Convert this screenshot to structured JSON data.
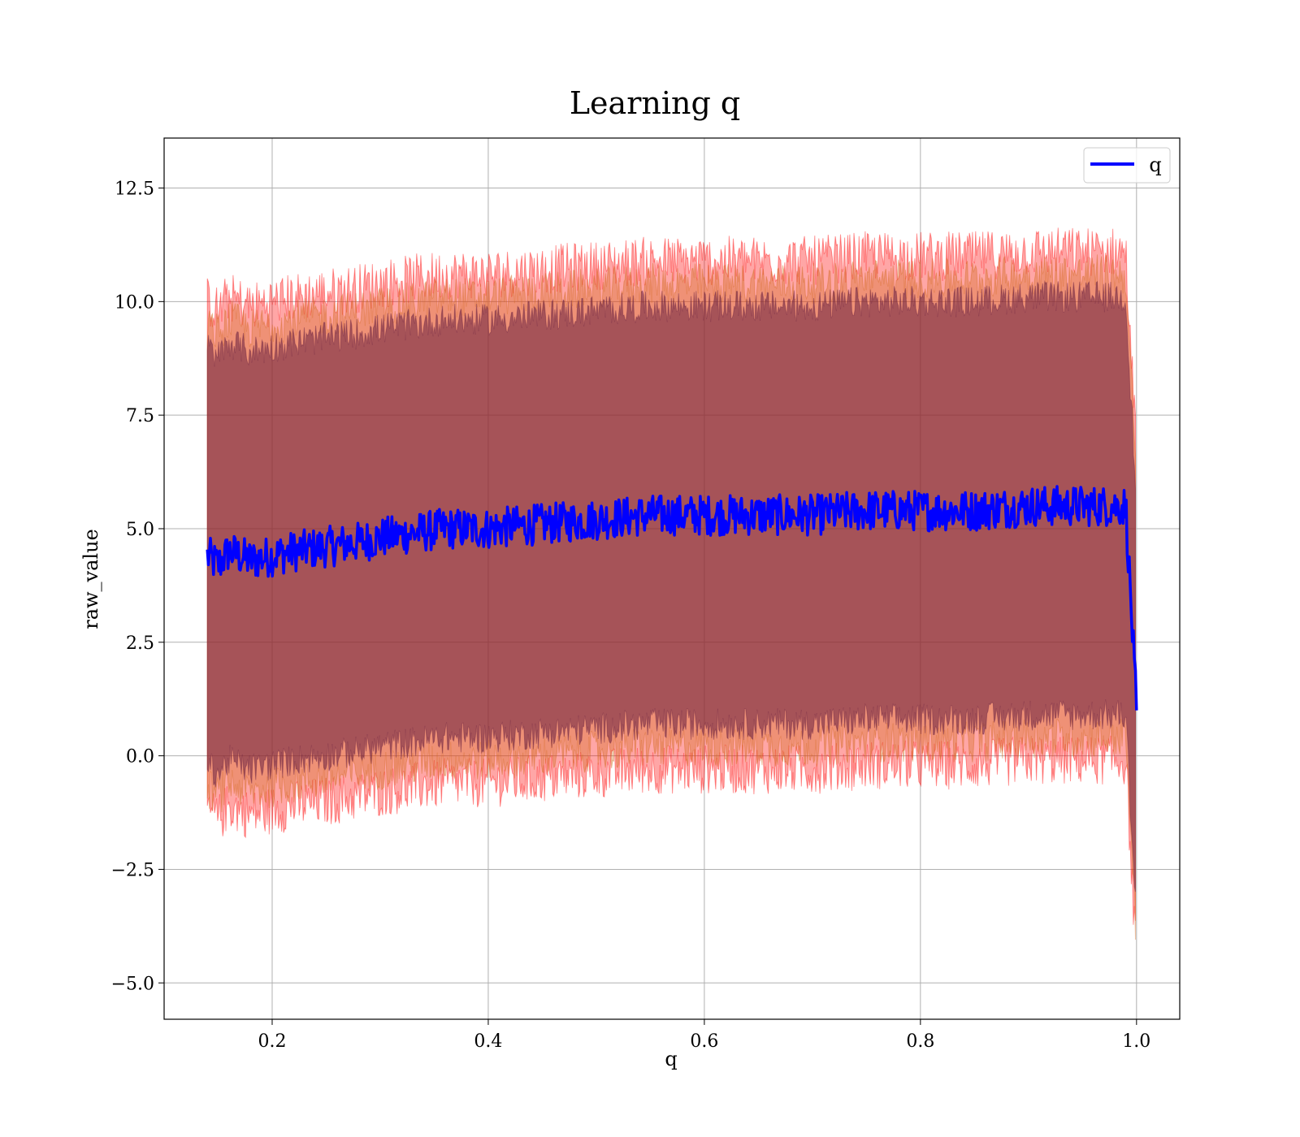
{
  "chart_data": {
    "type": "line",
    "title": "Learning q",
    "xlabel": "q",
    "ylabel": "raw_value",
    "xlim": [
      0.1,
      1.04
    ],
    "ylim": [
      -5.8,
      13.6
    ],
    "grid": true,
    "legend_position": "top-right",
    "x_ticks": [
      "0.2",
      "0.4",
      "0.6",
      "0.8",
      "1.0"
    ],
    "y_ticks": [
      "−5.0",
      "−2.5",
      "0.0",
      "2.5",
      "5.0",
      "7.5",
      "10.0",
      "12.5"
    ],
    "series": [
      {
        "name": "q",
        "color": "#0000ff",
        "x": [
          0.14,
          0.15,
          0.16,
          0.18,
          0.2,
          0.22,
          0.25,
          0.28,
          0.3,
          0.33,
          0.36,
          0.4,
          0.45,
          0.5,
          0.55,
          0.6,
          0.65,
          0.7,
          0.75,
          0.8,
          0.85,
          0.9,
          0.95,
          0.99,
          1.0
        ],
        "y": [
          4.4,
          4.2,
          4.5,
          4.3,
          4.4,
          4.5,
          4.6,
          4.7,
          4.8,
          4.9,
          5.0,
          5.0,
          5.1,
          5.2,
          5.3,
          5.3,
          5.3,
          5.3,
          5.4,
          5.4,
          5.4,
          5.5,
          5.5,
          5.5,
          1.0
        ],
        "noise": 0.45
      }
    ],
    "bands": [
      {
        "color": "#ff0000",
        "opacity": 0.35,
        "upper_offset": 5.6,
        "lower_offset": -5.6,
        "noise": 0.55
      },
      {
        "color": "#d2691e",
        "opacity": 0.35,
        "upper_offset": 5.1,
        "lower_offset": -5.1,
        "noise": 0.45
      },
      {
        "color": "#6a2040",
        "opacity": 0.55,
        "upper_offset": 4.6,
        "lower_offset": -4.6,
        "noise": 0.35
      }
    ]
  }
}
